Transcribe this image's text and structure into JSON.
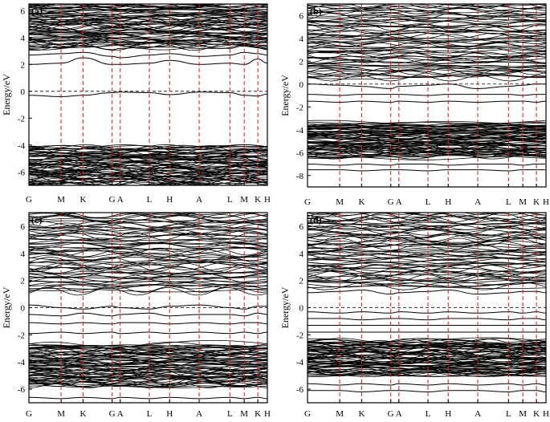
{
  "figure": {
    "ylabel": "Energy/eV"
  },
  "chart_data": [
    {
      "type": "line",
      "panel": "(a)",
      "xlabel": "",
      "ylabel": "Energy/eV",
      "x_ticks": [
        "G",
        "M",
        "K",
        "G",
        "A",
        "L",
        "H",
        "A",
        "L",
        "M",
        "K",
        "H"
      ],
      "y_ticks": [
        -6,
        -4,
        -2,
        0,
        2,
        4,
        6
      ],
      "ylim": [
        -7,
        6.5
      ],
      "fermi_level": 0,
      "valence_band_top": -4.1,
      "valence_band_bottom": -7.0,
      "conduction_dense_from": 3.3,
      "isolated_bands": [
        {
          "name": "",
          "values": [
            -0.3,
            -0.4,
            -0.3,
            -0.1,
            -0.05,
            -0.1,
            -0.25,
            -0.05,
            -0.1,
            -0.3,
            -0.35,
            -0.2
          ]
        },
        {
          "name": "",
          "values": [
            2.0,
            2.1,
            2.5,
            2.0,
            2.0,
            2.1,
            2.3,
            2.0,
            2.1,
            2.0,
            2.4,
            2.1
          ]
        },
        {
          "name": "",
          "values": [
            2.7,
            2.8,
            2.9,
            2.6,
            2.5,
            2.7,
            2.8,
            2.6,
            2.7,
            2.9,
            2.8,
            2.7
          ]
        },
        {
          "name": "",
          "values": [
            3.2,
            3.3,
            3.4,
            3.1,
            3.2,
            3.3,
            3.3,
            3.2,
            3.2,
            3.4,
            3.3,
            3.2
          ]
        }
      ]
    },
    {
      "type": "line",
      "panel": "(b)",
      "xlabel": "",
      "ylabel": "Energy/eV",
      "x_ticks": [
        "G",
        "M",
        "K",
        "G",
        "A",
        "L",
        "H",
        "A",
        "L",
        "M",
        "K",
        "H"
      ],
      "y_ticks": [
        -8,
        -6,
        -4,
        -2,
        0,
        2,
        4,
        6
      ],
      "ylim": [
        -9,
        7
      ],
      "fermi_level": 0,
      "valence_band_top": -3.4,
      "valence_band_bottom": -6.4,
      "conduction_dense_from": 0.5,
      "isolated_bands": [
        {
          "name": "",
          "values": [
            0.0,
            -0.1,
            -0.2,
            -0.4,
            -0.2,
            -0.1,
            0.0,
            -0.4,
            -0.2,
            -0.1,
            0.0,
            0.0
          ]
        },
        {
          "name": "",
          "values": [
            -0.9,
            -1.0,
            -0.9,
            -0.9,
            -0.9,
            -1.0,
            -0.9,
            -0.9,
            -0.9,
            -1.0,
            -0.9,
            -0.9
          ]
        },
        {
          "name": "",
          "values": [
            -1.5,
            -1.6,
            -1.5,
            -1.6,
            -1.5,
            -1.6,
            -1.5,
            -1.6,
            -1.5,
            -1.5,
            -1.6,
            -1.5
          ]
        },
        {
          "name": "",
          "values": [
            -7.0,
            -7.1,
            -7.0,
            -7.1,
            -7.0,
            -7.0,
            -7.1,
            -7.0,
            -7.0,
            -7.1,
            -7.0,
            -7.0
          ]
        },
        {
          "name": "",
          "values": [
            -7.5,
            -7.5,
            -7.6,
            -7.5,
            -7.5,
            -7.6,
            -7.5,
            -7.5,
            -7.6,
            -7.5,
            -7.5,
            -7.5
          ]
        }
      ]
    },
    {
      "type": "line",
      "panel": "(c)",
      "xlabel": "",
      "ylabel": "Energy/eV",
      "x_ticks": [
        "G",
        "M",
        "K",
        "G",
        "A",
        "L",
        "H",
        "A",
        "L",
        "M",
        "K",
        "H"
      ],
      "y_ticks": [
        -6,
        -4,
        -2,
        0,
        2,
        4,
        6
      ],
      "ylim": [
        -7,
        7
      ],
      "fermi_level": 0,
      "valence_band_top": -2.7,
      "valence_band_bottom": -5.8,
      "conduction_dense_from": 1.2,
      "isolated_bands": [
        {
          "name": "",
          "values": [
            0.2,
            0.0,
            -0.1,
            0.1,
            0.0,
            -0.1,
            0.1,
            0.2,
            0.0,
            -0.1,
            0.1,
            0.1
          ]
        },
        {
          "name": "",
          "values": [
            -0.5,
            -0.6,
            -0.4,
            -0.6,
            -0.5,
            -0.4,
            -0.6,
            -0.5,
            -0.5,
            -0.6,
            -0.4,
            -0.5
          ]
        },
        {
          "name": "",
          "values": [
            -1.1,
            -1.2,
            -1.1,
            -1.2,
            -1.1,
            -1.1,
            -1.2,
            -1.1,
            -1.2,
            -1.1,
            -1.1,
            -1.2
          ]
        },
        {
          "name": "",
          "values": [
            -1.9,
            -1.8,
            -1.9,
            -1.8,
            -1.9,
            -1.8,
            -1.9,
            -1.8,
            -1.9,
            -1.8,
            -1.9,
            -1.8
          ]
        },
        {
          "name": "",
          "values": [
            -6.6,
            -6.7,
            -6.6,
            -6.7,
            -6.6,
            -6.7,
            -6.6,
            -6.7,
            -6.6,
            -6.7,
            -6.6,
            -6.7
          ]
        }
      ]
    },
    {
      "type": "line",
      "panel": "(d)",
      "xlabel": "",
      "ylabel": "Energy/eV",
      "x_ticks": [
        "G",
        "M",
        "K",
        "G",
        "A",
        "L",
        "H",
        "A",
        "L",
        "M",
        "K",
        "H"
      ],
      "y_ticks": [
        -6,
        -4,
        -2,
        0,
        2,
        4,
        6
      ],
      "ylim": [
        -7,
        7
      ],
      "fermi_level": 0,
      "valence_band_top": -2.4,
      "valence_band_bottom": -5.0,
      "conduction_dense_from": 1.5,
      "isolated_bands": [
        {
          "name": "",
          "values": [
            1.1,
            1.2,
            1.3,
            1.0,
            1.1,
            1.2,
            1.3,
            1.0,
            1.1,
            1.2,
            1.2,
            1.1
          ]
        },
        {
          "name": "",
          "values": [
            -0.3,
            -0.4,
            -0.3,
            -0.4,
            -0.3,
            -0.4,
            -0.3,
            -0.4,
            -0.3,
            -0.4,
            -0.3,
            -0.4
          ]
        },
        {
          "name": "",
          "values": [
            -0.8,
            -0.8,
            -0.9,
            -0.8,
            -0.8,
            -0.9,
            -0.8,
            -0.8,
            -0.9,
            -0.8,
            -0.8,
            -0.9
          ]
        },
        {
          "name": "",
          "values": [
            -1.3,
            -1.3,
            -1.3,
            -1.3,
            -1.3,
            -1.3,
            -1.3,
            -1.3,
            -1.3,
            -1.3,
            -1.3,
            -1.3
          ]
        },
        {
          "name": "",
          "values": [
            -1.8,
            -1.8,
            -1.8,
            -1.8,
            -1.8,
            -1.8,
            -1.8,
            -1.8,
            -1.8,
            -1.8,
            -1.8,
            -1.8
          ]
        },
        {
          "name": "",
          "values": [
            -5.6,
            -5.7,
            -5.6,
            -5.7,
            -5.6,
            -5.7,
            -5.6,
            -5.7,
            -5.6,
            -5.7,
            -5.6,
            -5.7
          ]
        },
        {
          "name": "",
          "values": [
            -6.1,
            -6.1,
            -6.2,
            -6.1,
            -6.1,
            -6.2,
            -6.1,
            -6.1,
            -6.2,
            -6.1,
            -6.1,
            -6.2
          ]
        }
      ]
    }
  ],
  "colors": {
    "band_line": "#000000",
    "high_symmetry_line": "#e8141b",
    "fermi_line": "#000000"
  }
}
